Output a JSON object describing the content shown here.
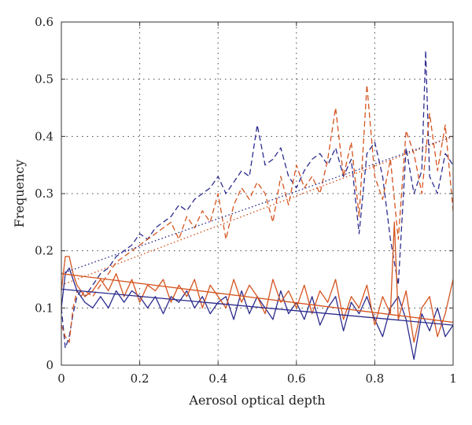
{
  "chart_data": {
    "type": "line",
    "xlabel": "Aerosol optical depth",
    "ylabel": "Frequency",
    "xlim": [
      0,
      1
    ],
    "ylim": [
      0,
      0.6
    ],
    "xticks": [
      0,
      0.2,
      0.4,
      0.6,
      0.8,
      1
    ],
    "yticks": [
      0,
      0.1,
      0.2,
      0.3,
      0.4,
      0.5,
      0.6
    ],
    "xtick_labels": [
      "0",
      "0.2",
      "0.4",
      "0.6",
      "0.8",
      "1"
    ],
    "ytick_labels": [
      "0",
      "0.1",
      "0.2",
      "0.3",
      "0.4",
      "0.5",
      "0.6"
    ],
    "grid": true,
    "colors": {
      "blue": "#2c2c8e",
      "orange": "#d4541f"
    },
    "series": [
      {
        "color": "blue",
        "style": "dashed",
        "x": [
          0,
          0.01,
          0.02,
          0.03,
          0.04,
          0.05,
          0.06,
          0.08,
          0.1,
          0.12,
          0.14,
          0.16,
          0.18,
          0.2,
          0.22,
          0.24,
          0.26,
          0.28,
          0.3,
          0.32,
          0.34,
          0.36,
          0.38,
          0.4,
          0.42,
          0.44,
          0.46,
          0.48,
          0.5,
          0.52,
          0.54,
          0.56,
          0.58,
          0.6,
          0.62,
          0.64,
          0.66,
          0.68,
          0.7,
          0.72,
          0.74,
          0.76,
          0.78,
          0.8,
          0.82,
          0.84,
          0.86,
          0.88,
          0.9,
          0.92,
          0.93,
          0.94,
          0.96,
          0.98,
          1
        ],
        "y": [
          0.1,
          0.03,
          0.05,
          0.09,
          0.12,
          0.13,
          0.12,
          0.14,
          0.16,
          0.17,
          0.19,
          0.2,
          0.21,
          0.23,
          0.22,
          0.24,
          0.25,
          0.26,
          0.28,
          0.27,
          0.29,
          0.3,
          0.31,
          0.33,
          0.3,
          0.32,
          0.34,
          0.33,
          0.42,
          0.35,
          0.36,
          0.38,
          0.33,
          0.31,
          0.34,
          0.36,
          0.37,
          0.35,
          0.38,
          0.33,
          0.36,
          0.23,
          0.37,
          0.39,
          0.33,
          0.22,
          0.14,
          0.38,
          0.3,
          0.34,
          0.55,
          0.33,
          0.3,
          0.37,
          0.35
        ]
      },
      {
        "color": "orange",
        "style": "dashed",
        "x": [
          0,
          0.01,
          0.02,
          0.03,
          0.04,
          0.05,
          0.06,
          0.08,
          0.1,
          0.12,
          0.14,
          0.16,
          0.18,
          0.2,
          0.22,
          0.24,
          0.26,
          0.28,
          0.3,
          0.32,
          0.34,
          0.36,
          0.38,
          0.4,
          0.42,
          0.44,
          0.46,
          0.48,
          0.5,
          0.52,
          0.54,
          0.56,
          0.58,
          0.6,
          0.62,
          0.64,
          0.66,
          0.68,
          0.7,
          0.72,
          0.74,
          0.76,
          0.78,
          0.8,
          0.82,
          0.84,
          0.86,
          0.88,
          0.9,
          0.92,
          0.94,
          0.96,
          0.98,
          1
        ],
        "y": [
          0.07,
          0.05,
          0.04,
          0.1,
          0.13,
          0.12,
          0.13,
          0.12,
          0.14,
          0.16,
          0.18,
          0.19,
          0.2,
          0.21,
          0.22,
          0.23,
          0.24,
          0.25,
          0.22,
          0.26,
          0.24,
          0.27,
          0.25,
          0.3,
          0.22,
          0.28,
          0.31,
          0.29,
          0.32,
          0.3,
          0.25,
          0.33,
          0.28,
          0.35,
          0.31,
          0.33,
          0.3,
          0.36,
          0.45,
          0.33,
          0.39,
          0.26,
          0.49,
          0.33,
          0.29,
          0.36,
          0.22,
          0.41,
          0.37,
          0.3,
          0.44,
          0.34,
          0.42,
          0.27
        ]
      },
      {
        "color": "blue",
        "style": "solid",
        "x": [
          0,
          0.01,
          0.02,
          0.03,
          0.04,
          0.06,
          0.08,
          0.1,
          0.12,
          0.14,
          0.16,
          0.18,
          0.2,
          0.22,
          0.24,
          0.26,
          0.28,
          0.3,
          0.32,
          0.34,
          0.36,
          0.38,
          0.4,
          0.42,
          0.44,
          0.46,
          0.48,
          0.5,
          0.52,
          0.54,
          0.56,
          0.58,
          0.6,
          0.62,
          0.64,
          0.66,
          0.68,
          0.7,
          0.72,
          0.74,
          0.76,
          0.78,
          0.8,
          0.82,
          0.84,
          0.86,
          0.88,
          0.9,
          0.92,
          0.94,
          0.96,
          0.98,
          1
        ],
        "y": [
          0.1,
          0.16,
          0.17,
          0.15,
          0.13,
          0.11,
          0.1,
          0.12,
          0.1,
          0.13,
          0.11,
          0.13,
          0.12,
          0.1,
          0.12,
          0.09,
          0.12,
          0.11,
          0.13,
          0.1,
          0.12,
          0.09,
          0.11,
          0.12,
          0.08,
          0.13,
          0.09,
          0.12,
          0.1,
          0.08,
          0.13,
          0.09,
          0.11,
          0.08,
          0.12,
          0.07,
          0.1,
          0.12,
          0.06,
          0.11,
          0.09,
          0.12,
          0.08,
          0.05,
          0.1,
          0.12,
          0.08,
          0.01,
          0.09,
          0.06,
          0.1,
          0.05,
          0.07
        ]
      },
      {
        "color": "orange",
        "style": "solid",
        "x": [
          0,
          0.01,
          0.02,
          0.03,
          0.04,
          0.06,
          0.08,
          0.1,
          0.12,
          0.14,
          0.16,
          0.18,
          0.2,
          0.22,
          0.24,
          0.26,
          0.28,
          0.3,
          0.32,
          0.34,
          0.36,
          0.38,
          0.4,
          0.42,
          0.44,
          0.46,
          0.48,
          0.5,
          0.52,
          0.54,
          0.56,
          0.58,
          0.6,
          0.62,
          0.64,
          0.66,
          0.68,
          0.7,
          0.72,
          0.74,
          0.76,
          0.78,
          0.8,
          0.82,
          0.84,
          0.85,
          0.86,
          0.88,
          0.9,
          0.92,
          0.94,
          0.96,
          0.98,
          1
        ],
        "y": [
          0.13,
          0.19,
          0.19,
          0.16,
          0.14,
          0.12,
          0.13,
          0.15,
          0.13,
          0.16,
          0.12,
          0.15,
          0.11,
          0.14,
          0.13,
          0.15,
          0.11,
          0.14,
          0.12,
          0.15,
          0.1,
          0.14,
          0.12,
          0.1,
          0.15,
          0.11,
          0.14,
          0.12,
          0.09,
          0.15,
          0.11,
          0.13,
          0.1,
          0.14,
          0.09,
          0.13,
          0.11,
          0.15,
          0.08,
          0.12,
          0.1,
          0.14,
          0.07,
          0.12,
          0.09,
          0.25,
          0.08,
          0.13,
          0.04,
          0.1,
          0.12,
          0.05,
          0.09,
          0.15
        ]
      },
      {
        "color": "blue",
        "style": "dotted",
        "x": [
          0,
          1
        ],
        "y": [
          0.16,
          0.4
        ]
      },
      {
        "color": "orange",
        "style": "dotted",
        "x": [
          0,
          1
        ],
        "y": [
          0.14,
          0.4
        ]
      },
      {
        "color": "blue",
        "style": "solid",
        "x": [
          0,
          1
        ],
        "y": [
          0.133,
          0.07
        ]
      },
      {
        "color": "orange",
        "style": "solid",
        "x": [
          0,
          1
        ],
        "y": [
          0.16,
          0.075
        ]
      }
    ]
  }
}
